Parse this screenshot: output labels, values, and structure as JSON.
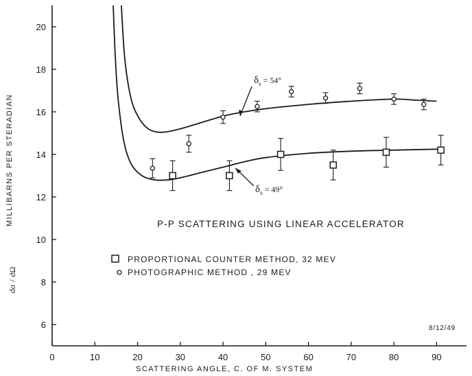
{
  "chart_data": {
    "type": "scatter",
    "title": "P-P  SCATTERING USING LINEAR ACCELERATOR",
    "xlabel": "SCATTERING  ANGLE, C. OF M. SYSTEM",
    "ylabel": "MILLIBARNS  PER  STERADIAN",
    "ylabel_symbol": {
      "numerator": "dσ",
      "denominator": "dΩ"
    },
    "xlim": [
      0,
      97
    ],
    "ylim": [
      5,
      21
    ],
    "x_ticks": [
      "0",
      "10",
      "20",
      "30",
      "40",
      "50",
      "60",
      "70",
      "80",
      "90"
    ],
    "y_ticks": [
      "6",
      "8",
      "10",
      "12",
      "14",
      "16",
      "18",
      "20"
    ],
    "grid": false,
    "date_stamp": "8/12/49",
    "series": [
      {
        "name": "PROPORTIONAL COUNTER METHOD, 32 MEV",
        "marker": "square",
        "points": [
          {
            "x": 28.2,
            "y": 13.0,
            "err": 0.7
          },
          {
            "x": 41.5,
            "y": 13.0,
            "err": 0.7
          },
          {
            "x": 53.5,
            "y": 14.0,
            "err": 0.75
          },
          {
            "x": 65.8,
            "y": 13.5,
            "err": 0.7
          },
          {
            "x": 78.2,
            "y": 14.1,
            "err": 0.7
          },
          {
            "x": 91.0,
            "y": 14.2,
            "err": 0.7
          }
        ]
      },
      {
        "name": "PHOTOGRAPHIC METHOD , 29 MEV",
        "marker": "circle",
        "points": [
          {
            "x": 23.5,
            "y": 13.35,
            "err": 0.45
          },
          {
            "x": 32.0,
            "y": 14.5,
            "err": 0.4
          },
          {
            "x": 40.0,
            "y": 15.75,
            "err": 0.3
          },
          {
            "x": 48.0,
            "y": 16.25,
            "err": 0.25
          },
          {
            "x": 56.0,
            "y": 16.95,
            "err": 0.25
          },
          {
            "x": 64.0,
            "y": 16.65,
            "err": 0.25
          },
          {
            "x": 72.0,
            "y": 17.1,
            "err": 0.25
          },
          {
            "x": 80.0,
            "y": 16.6,
            "err": 0.25
          },
          {
            "x": 87.0,
            "y": 16.35,
            "err": 0.25
          }
        ]
      }
    ],
    "curves": [
      {
        "label": "δs = 54°",
        "label_parts": {
          "delta": "δ",
          "sub": "s",
          "value": " = 54°"
        },
        "points": [
          [
            16.2,
            21.0
          ],
          [
            17.0,
            18.5
          ],
          [
            18.5,
            16.6
          ],
          [
            20.5,
            15.65
          ],
          [
            22.5,
            15.2
          ],
          [
            24.5,
            15.05
          ],
          [
            26.5,
            15.05
          ],
          [
            30,
            15.2
          ],
          [
            35,
            15.5
          ],
          [
            40,
            15.8
          ],
          [
            45,
            16.0
          ],
          [
            50,
            16.15
          ],
          [
            60,
            16.35
          ],
          [
            70,
            16.5
          ],
          [
            80,
            16.6
          ],
          [
            85,
            16.55
          ],
          [
            90,
            16.5
          ]
        ]
      },
      {
        "label": "δs = 49°",
        "label_parts": {
          "delta": "δ",
          "sub": "s",
          "value": " = 49°"
        },
        "points": [
          [
            14.3,
            21.0
          ],
          [
            14.8,
            18.5
          ],
          [
            15.5,
            16.5
          ],
          [
            16.8,
            14.6
          ],
          [
            18.5,
            13.55
          ],
          [
            21,
            13.0
          ],
          [
            24,
            12.8
          ],
          [
            27,
            12.8
          ],
          [
            30,
            12.9
          ],
          [
            35,
            13.15
          ],
          [
            40,
            13.4
          ],
          [
            45,
            13.65
          ],
          [
            50,
            13.85
          ],
          [
            60,
            14.05
          ],
          [
            70,
            14.15
          ],
          [
            80,
            14.2
          ],
          [
            91,
            14.25
          ]
        ]
      }
    ],
    "legend": {
      "placement": "lower-left",
      "entries": [
        {
          "marker": "square",
          "label": "PROPORTIONAL  COUNTER  METHOD, 32  MEV"
        },
        {
          "marker": "circle",
          "label": "PHOTOGRAPHIC  METHOD ,  29  MEV"
        }
      ]
    }
  }
}
